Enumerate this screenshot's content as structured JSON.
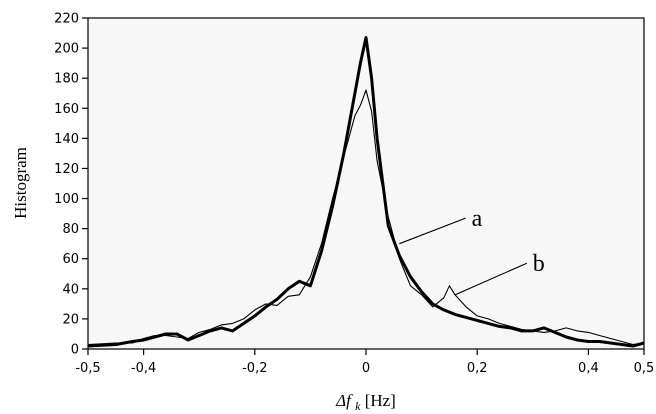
{
  "chart_data": {
    "type": "line",
    "xlabel_prefix": "Δf",
    "xlabel_sub": "k",
    "xlabel_unit": "[Hz]",
    "ylabel": "Histogram",
    "xlim": [
      -0.5,
      0.5
    ],
    "ylim": [
      0,
      220
    ],
    "x_ticks": [
      -0.5,
      -0.4,
      -0.2,
      0,
      0.2,
      0.4,
      0.5
    ],
    "x_tick_labels": [
      "-0,5",
      "-0,4",
      "-0,2",
      "0",
      "0,2",
      "0,4",
      "0,5"
    ],
    "y_ticks": [
      0,
      20,
      40,
      60,
      80,
      100,
      120,
      140,
      160,
      180,
      200,
      220
    ],
    "y_tick_labels": [
      "0",
      "20",
      "40",
      "60",
      "80",
      "100",
      "120",
      "140",
      "160",
      "180",
      "200",
      "220"
    ],
    "grid": false,
    "background": "#f7f7f7",
    "series": [
      {
        "name": "a",
        "style": "thick",
        "color": "#000000",
        "x": [
          -0.5,
          -0.45,
          -0.42,
          -0.4,
          -0.38,
          -0.36,
          -0.34,
          -0.32,
          -0.3,
          -0.28,
          -0.26,
          -0.24,
          -0.22,
          -0.2,
          -0.18,
          -0.16,
          -0.14,
          -0.12,
          -0.1,
          -0.08,
          -0.06,
          -0.04,
          -0.02,
          -0.01,
          0,
          0.01,
          0.02,
          0.04,
          0.06,
          0.08,
          0.1,
          0.12,
          0.14,
          0.16,
          0.18,
          0.2,
          0.22,
          0.24,
          0.26,
          0.28,
          0.3,
          0.32,
          0.34,
          0.36,
          0.38,
          0.4,
          0.42,
          0.44,
          0.46,
          0.48,
          0.5
        ],
        "values": [
          2,
          3,
          5,
          6,
          8,
          10,
          10,
          6,
          9,
          12,
          14,
          12,
          17,
          22,
          28,
          33,
          40,
          45,
          42,
          65,
          95,
          130,
          170,
          190,
          207,
          180,
          140,
          82,
          62,
          48,
          38,
          30,
          26,
          23,
          21,
          19,
          17,
          15,
          14,
          12,
          12,
          14,
          11,
          8,
          6,
          5,
          5,
          4,
          3,
          2,
          4
        ]
      },
      {
        "name": "b",
        "style": "thin",
        "color": "#000000",
        "x": [
          -0.5,
          -0.45,
          -0.42,
          -0.4,
          -0.38,
          -0.36,
          -0.34,
          -0.32,
          -0.3,
          -0.28,
          -0.26,
          -0.24,
          -0.22,
          -0.2,
          -0.18,
          -0.16,
          -0.14,
          -0.12,
          -0.1,
          -0.08,
          -0.06,
          -0.04,
          -0.02,
          -0.01,
          0,
          0.01,
          0.02,
          0.04,
          0.06,
          0.08,
          0.1,
          0.12,
          0.14,
          0.15,
          0.16,
          0.18,
          0.2,
          0.22,
          0.24,
          0.26,
          0.28,
          0.3,
          0.32,
          0.34,
          0.36,
          0.38,
          0.4,
          0.42,
          0.44,
          0.46,
          0.48,
          0.5
        ],
        "values": [
          3,
          4,
          4,
          7,
          9,
          9,
          8,
          7,
          11,
          13,
          16,
          17,
          20,
          26,
          30,
          29,
          35,
          36,
          48,
          70,
          100,
          128,
          155,
          162,
          172,
          158,
          125,
          88,
          60,
          42,
          36,
          28,
          34,
          42,
          36,
          28,
          22,
          20,
          17,
          15,
          13,
          12,
          11,
          12,
          14,
          12,
          11,
          9,
          7,
          5,
          3,
          4
        ]
      }
    ],
    "annotations": [
      {
        "text": "a",
        "target_x": 0.06,
        "target_y": 70,
        "label_x": 0.19,
        "label_y": 87
      },
      {
        "text": "b",
        "target_x": 0.16,
        "target_y": 36,
        "label_x": 0.3,
        "label_y": 57
      }
    ]
  }
}
